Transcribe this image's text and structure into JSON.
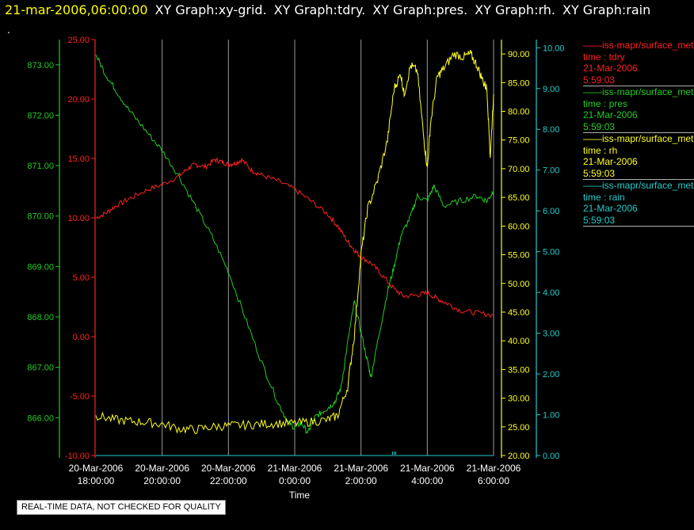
{
  "header": {
    "timestamp": "21-mar-2006,06:00:00",
    "graph_labels": [
      "XY Graph:xy-grid.",
      "XY Graph:tdry.",
      "XY Graph:pres.",
      "XY Graph:rh.",
      "XY Graph:rain"
    ]
  },
  "dot_mark": ".",
  "qc_note": "REAL-TIME DATA, NOT CHECKED FOR QUALITY",
  "legend": [
    {
      "source": "iss-mapr/surface_met",
      "var_line": "time : tdry",
      "date": "21-Mar-2006",
      "time": "5:59:03",
      "color": "#ff2020"
    },
    {
      "source": "iss-mapr/surface_met",
      "var_line": "time : pres",
      "date": "21-Mar-2006",
      "time": "5:59:03",
      "color": "#22cc22"
    },
    {
      "source": "iss-mapr/surface_met",
      "var_line": "time : rh",
      "date": "21-Mar-2006",
      "time": "5:59:03",
      "color": "#ffff22"
    },
    {
      "source": "iss-mapr/surface_met",
      "var_line": "time : rain",
      "date": "21-Mar-2006",
      "time": "5:59:03",
      "color": "#22cccc"
    }
  ],
  "chart_data": {
    "type": "line",
    "xlabel": "Time",
    "x_range": [
      "20-Mar-2006 18:00:00",
      "21-Mar-2006 06:00:00"
    ],
    "x_ticks": [
      {
        "date": "20-Mar-2006",
        "time": "18:00:00",
        "hours": 0
      },
      {
        "date": "20-Mar-2006",
        "time": "20:00:00",
        "hours": 2
      },
      {
        "date": "20-Mar-2006",
        "time": "22:00:00",
        "hours": 4
      },
      {
        "date": "21-Mar-2006",
        "time": "0:00:00",
        "hours": 6
      },
      {
        "date": "21-Mar-2006",
        "time": "2:00:00",
        "hours": 8
      },
      {
        "date": "21-Mar-2006",
        "time": "4:00:00",
        "hours": 10
      },
      {
        "date": "21-Mar-2006",
        "time": "6:00:00",
        "hours": 12
      }
    ],
    "grid": "vertical lines at x ticks",
    "axes": [
      {
        "id": "tdry",
        "color": "#ff2020",
        "min": -10,
        "max": 25,
        "ticks": [
          "25.00",
          "20.00",
          "15.00",
          "10.00",
          "5.00",
          "0.00",
          "-5.00",
          "-10.00"
        ]
      },
      {
        "id": "pres",
        "color": "#22cc22",
        "min": 865.25,
        "max": 873.5,
        "ticks": [
          "873.00",
          "872.00",
          "871.00",
          "870.00",
          "869.00",
          "868.00",
          "867.00",
          "866.00"
        ]
      },
      {
        "id": "rh",
        "color": "#ffff22",
        "min": 20,
        "max": 92.5,
        "ticks": [
          "90.00",
          "85.00",
          "80.00",
          "75.00",
          "70.00",
          "65.00",
          "60.00",
          "55.00",
          "50.00",
          "45.00",
          "40.00",
          "35.00",
          "30.00",
          "25.00",
          "20.00"
        ]
      },
      {
        "id": "rain",
        "color": "#22cccc",
        "min": 0,
        "max": 10.2,
        "ticks": [
          "10.00",
          "9.00",
          "8.00",
          "7.00",
          "6.00",
          "5.00",
          "4.00",
          "3.00",
          "2.00",
          "1.00",
          "0.00"
        ]
      }
    ],
    "series": [
      {
        "name": "time : tdry",
        "axis": "tdry",
        "color": "#ff2020",
        "points": [
          [
            0,
            10.0
          ],
          [
            0.3,
            10.4
          ],
          [
            0.6,
            11.0
          ],
          [
            1.0,
            11.6
          ],
          [
            1.5,
            12.3
          ],
          [
            2.0,
            12.8
          ],
          [
            2.5,
            13.5
          ],
          [
            2.8,
            14.2
          ],
          [
            3.0,
            14.5
          ],
          [
            3.3,
            14.3
          ],
          [
            3.6,
            14.9
          ],
          [
            3.8,
            14.7
          ],
          [
            4.0,
            14.5
          ],
          [
            4.2,
            14.6
          ],
          [
            4.4,
            14.9
          ],
          [
            4.7,
            14.0
          ],
          [
            5.0,
            13.6
          ],
          [
            5.5,
            13.1
          ],
          [
            6.0,
            12.4
          ],
          [
            6.5,
            11.4
          ],
          [
            7.0,
            10.3
          ],
          [
            7.3,
            9.3
          ],
          [
            7.6,
            8.0
          ],
          [
            7.8,
            7.3
          ],
          [
            8.0,
            6.7
          ],
          [
            8.3,
            6.2
          ],
          [
            8.6,
            5.3
          ],
          [
            9.0,
            4.0
          ],
          [
            9.3,
            3.4
          ],
          [
            9.7,
            3.5
          ],
          [
            10.0,
            3.7
          ],
          [
            10.3,
            3.2
          ],
          [
            10.6,
            2.8
          ],
          [
            11.0,
            2.2
          ],
          [
            11.5,
            2.0
          ],
          [
            12.0,
            1.8
          ]
        ]
      },
      {
        "name": "time : pres",
        "axis": "pres",
        "color": "#22cc22",
        "points": [
          [
            0,
            873.2
          ],
          [
            0.3,
            872.8
          ],
          [
            0.6,
            872.5
          ],
          [
            1.0,
            872.1
          ],
          [
            1.5,
            871.7
          ],
          [
            2.0,
            871.3
          ],
          [
            2.5,
            870.8
          ],
          [
            3.0,
            870.2
          ],
          [
            3.5,
            869.6
          ],
          [
            4.0,
            868.9
          ],
          [
            4.5,
            868.0
          ],
          [
            5.0,
            867.1
          ],
          [
            5.5,
            866.3
          ],
          [
            5.8,
            865.9
          ],
          [
            6.0,
            865.8
          ],
          [
            6.2,
            865.9
          ],
          [
            6.4,
            865.7
          ],
          [
            6.6,
            866.0
          ],
          [
            6.8,
            866.1
          ],
          [
            7.0,
            866.2
          ],
          [
            7.2,
            866.3
          ],
          [
            7.4,
            866.6
          ],
          [
            7.6,
            867.5
          ],
          [
            7.8,
            868.3
          ],
          [
            8.0,
            867.7
          ],
          [
            8.2,
            867.1
          ],
          [
            8.3,
            866.8
          ],
          [
            8.5,
            867.5
          ],
          [
            8.8,
            868.5
          ],
          [
            9.0,
            869.0
          ],
          [
            9.2,
            869.6
          ],
          [
            9.5,
            870.0
          ],
          [
            9.7,
            870.4
          ],
          [
            10.0,
            870.3
          ],
          [
            10.2,
            870.6
          ],
          [
            10.5,
            870.2
          ],
          [
            11.0,
            870.3
          ],
          [
            11.5,
            870.4
          ],
          [
            11.8,
            870.3
          ],
          [
            12.0,
            870.5
          ]
        ]
      },
      {
        "name": "time : rh",
        "axis": "rh",
        "color": "#ffff22",
        "points": [
          [
            0,
            27.0
          ],
          [
            0.5,
            26.3
          ],
          [
            1.0,
            26.0
          ],
          [
            1.5,
            25.8
          ],
          [
            2.0,
            25.5
          ],
          [
            2.5,
            24.7
          ],
          [
            3.0,
            24.5
          ],
          [
            3.5,
            25.0
          ],
          [
            4.0,
            25.2
          ],
          [
            4.5,
            25.3
          ],
          [
            5.0,
            25.5
          ],
          [
            5.5,
            25.6
          ],
          [
            6.0,
            25.6
          ],
          [
            6.5,
            25.9
          ],
          [
            7.0,
            26.2
          ],
          [
            7.3,
            27.0
          ],
          [
            7.6,
            32.0
          ],
          [
            7.8,
            41.0
          ],
          [
            8.0,
            55.0
          ],
          [
            8.2,
            63.0
          ],
          [
            8.5,
            68.0
          ],
          [
            8.8,
            75.0
          ],
          [
            9.0,
            84.0
          ],
          [
            9.2,
            86.5
          ],
          [
            9.3,
            83.0
          ],
          [
            9.5,
            88.0
          ],
          [
            9.7,
            87.0
          ],
          [
            9.9,
            75.0
          ],
          [
            10.0,
            70.0
          ],
          [
            10.1,
            78.0
          ],
          [
            10.3,
            86.0
          ],
          [
            10.5,
            87.5
          ],
          [
            10.8,
            90.0
          ],
          [
            11.1,
            89.5
          ],
          [
            11.3,
            90.0
          ],
          [
            11.5,
            88.0
          ],
          [
            11.7,
            85.0
          ],
          [
            11.8,
            84.0
          ],
          [
            11.9,
            72.0
          ],
          [
            12.0,
            83.0
          ]
        ]
      },
      {
        "name": "time : rain",
        "axis": "rain",
        "color": "#22cccc",
        "points": [
          [
            0,
            0.0
          ],
          [
            12.0,
            0.0
          ]
        ]
      }
    ]
  }
}
